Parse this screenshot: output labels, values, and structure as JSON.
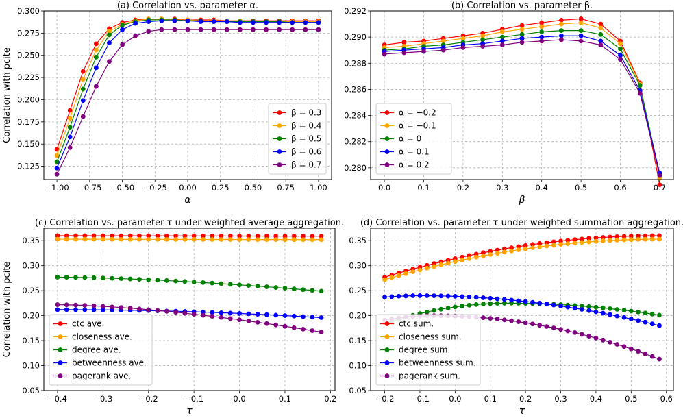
{
  "chart_data": [
    {
      "type": "line",
      "title": "(a) Correlation vs. parameter α.",
      "xlabel": "α",
      "ylabel": "Correlation with pcite",
      "xlim": [
        -1.1,
        1.1
      ],
      "ylim": [
        0.11,
        0.3
      ],
      "xticks": [
        -1.0,
        -0.75,
        -0.5,
        -0.25,
        0.0,
        0.25,
        0.5,
        0.75,
        1.0
      ],
      "xtick_labels": [
        "−1.00",
        "−0.75",
        "−0.50",
        "−0.25",
        "0.00",
        "0.25",
        "0.50",
        "0.75",
        "1.00"
      ],
      "yticks": [
        0.125,
        0.15,
        0.175,
        0.2,
        0.225,
        0.25,
        0.275,
        0.3
      ],
      "ytick_labels": [
        "0.125",
        "0.150",
        "0.175",
        "0.200",
        "0.225",
        "0.250",
        "0.275",
        "0.300"
      ],
      "legend_loc": "lower-right",
      "grid": true,
      "x": [
        -1.0,
        -0.9,
        -0.8,
        -0.7,
        -0.6,
        -0.5,
        -0.4,
        -0.3,
        -0.2,
        -0.1,
        0.0,
        0.1,
        0.2,
        0.3,
        0.4,
        0.5,
        0.6,
        0.7,
        0.8,
        0.9,
        1.0
      ],
      "series": [
        {
          "name": "β = 0.3",
          "color": "#ff0000",
          "values": [
            0.144,
            0.188,
            0.232,
            0.263,
            0.28,
            0.287,
            0.29,
            0.291,
            0.291,
            0.291,
            0.29,
            0.29,
            0.29,
            0.289,
            0.289,
            0.289,
            0.289,
            0.289,
            0.289,
            0.289,
            0.289
          ]
        },
        {
          "name": "β = 0.4",
          "color": "#ffa500",
          "values": [
            0.137,
            0.179,
            0.223,
            0.256,
            0.277,
            0.285,
            0.289,
            0.291,
            0.291,
            0.29,
            0.29,
            0.289,
            0.289,
            0.289,
            0.289,
            0.288,
            0.288,
            0.288,
            0.288,
            0.288,
            0.288
          ]
        },
        {
          "name": "β = 0.5",
          "color": "#008000",
          "values": [
            0.13,
            0.169,
            0.212,
            0.248,
            0.273,
            0.284,
            0.288,
            0.29,
            0.29,
            0.29,
            0.289,
            0.289,
            0.288,
            0.288,
            0.288,
            0.288,
            0.288,
            0.288,
            0.287,
            0.287,
            0.287
          ]
        },
        {
          "name": "β = 0.6",
          "color": "#0000ff",
          "values": [
            0.123,
            0.158,
            0.199,
            0.236,
            0.264,
            0.279,
            0.286,
            0.288,
            0.289,
            0.289,
            0.289,
            0.288,
            0.288,
            0.288,
            0.287,
            0.287,
            0.287,
            0.287,
            0.287,
            0.287,
            0.287
          ]
        },
        {
          "name": "β = 0.7",
          "color": "#800080",
          "values": [
            0.116,
            0.146,
            0.181,
            0.215,
            0.243,
            0.262,
            0.272,
            0.277,
            0.279,
            0.279,
            0.279,
            0.279,
            0.279,
            0.279,
            0.279,
            0.279,
            0.279,
            0.279,
            0.279,
            0.279,
            0.279
          ]
        }
      ]
    },
    {
      "type": "line",
      "title": "(b) Correlation vs. parameter β.",
      "xlabel": "β",
      "ylabel": "",
      "xlim": [
        -0.035,
        0.735
      ],
      "ylim": [
        0.2791,
        0.292
      ],
      "xticks": [
        0.0,
        0.1,
        0.2,
        0.3,
        0.4,
        0.5,
        0.6,
        0.7
      ],
      "xtick_labels": [
        "0.0",
        "0.1",
        "0.2",
        "0.3",
        "0.4",
        "0.5",
        "0.6",
        "0.7"
      ],
      "yticks": [
        0.28,
        0.282,
        0.284,
        0.286,
        0.288,
        0.29,
        0.292
      ],
      "ytick_labels": [
        "0.280",
        "0.282",
        "0.284",
        "0.286",
        "0.288",
        "0.290",
        "0.292"
      ],
      "legend_loc": "lower-left",
      "grid": true,
      "x": [
        0.0,
        0.05,
        0.1,
        0.15,
        0.2,
        0.25,
        0.3,
        0.35,
        0.4,
        0.45,
        0.5,
        0.55,
        0.6,
        0.65,
        0.7
      ],
      "series": [
        {
          "name": "α = −0.2",
          "color": "#ff0000",
          "values": [
            0.2894,
            0.2896,
            0.2897,
            0.2899,
            0.2901,
            0.2903,
            0.2906,
            0.2909,
            0.2911,
            0.2913,
            0.2914,
            0.291,
            0.2897,
            0.2865,
            0.2787
          ]
        },
        {
          "name": "α = −0.1",
          "color": "#ffa500",
          "values": [
            0.2892,
            0.2893,
            0.2895,
            0.2897,
            0.2899,
            0.2901,
            0.2904,
            0.2906,
            0.2908,
            0.291,
            0.2911,
            0.2907,
            0.2895,
            0.2864,
            0.2792
          ]
        },
        {
          "name": "α = 0",
          "color": "#008000",
          "values": [
            0.289,
            0.2891,
            0.2893,
            0.2894,
            0.2896,
            0.2898,
            0.29,
            0.2902,
            0.2904,
            0.2905,
            0.2905,
            0.2902,
            0.2891,
            0.2863,
            0.2795
          ]
        },
        {
          "name": "α = 0.1",
          "color": "#0000ff",
          "values": [
            0.2889,
            0.289,
            0.2891,
            0.2892,
            0.2894,
            0.2895,
            0.2897,
            0.2899,
            0.29,
            0.2901,
            0.2901,
            0.2897,
            0.2886,
            0.2859,
            0.2796
          ]
        },
        {
          "name": "α = 0.2",
          "color": "#800080",
          "values": [
            0.2887,
            0.2888,
            0.2889,
            0.289,
            0.2892,
            0.2893,
            0.2894,
            0.2896,
            0.2897,
            0.2898,
            0.2897,
            0.2894,
            0.2883,
            0.2857,
            0.2794
          ]
        }
      ]
    },
    {
      "type": "line",
      "title": "(c) Correlation vs. parameter τ under weighted average aggregation.",
      "xlabel": "τ",
      "ylabel": "Correlation with pcite",
      "xlim": [
        -0.43,
        0.21
      ],
      "ylim": [
        0.05,
        0.375
      ],
      "xticks": [
        -0.4,
        -0.3,
        -0.2,
        -0.1,
        0.0,
        0.1,
        0.2
      ],
      "xtick_labels": [
        "−0.4",
        "−0.3",
        "−0.2",
        "−0.1",
        "0.0",
        "0.1",
        "0.2"
      ],
      "yticks": [
        0.05,
        0.1,
        0.15,
        0.2,
        0.25,
        0.3,
        0.35
      ],
      "ytick_labels": [
        "0.05",
        "0.10",
        "0.15",
        "0.20",
        "0.25",
        "0.30",
        "0.35"
      ],
      "legend_loc": "lower-left",
      "grid": true,
      "x_range": {
        "start": -0.4,
        "end": 0.18,
        "step": 0.02
      },
      "series": [
        {
          "name": "ctc ave.",
          "color": "#ff0000",
          "start": 0.36,
          "end": 0.359,
          "curve": 1.0
        },
        {
          "name": "closeness ave.",
          "color": "#ffa500",
          "start": 0.353,
          "end": 0.352,
          "curve": 1.0
        },
        {
          "name": "degree ave.",
          "color": "#008000",
          "start": 0.277,
          "end": 0.249,
          "curve": 1.6
        },
        {
          "name": "betweenness ave.",
          "color": "#0000ff",
          "start": 0.212,
          "end": 0.196,
          "curve": 2.0
        },
        {
          "name": "pagerank ave.",
          "color": "#800080",
          "start": 0.222,
          "end": 0.167,
          "curve": 1.6
        }
      ]
    },
    {
      "type": "line",
      "title": "(d) Correlation vs. parameter τ under weighted summation aggregation.",
      "xlabel": "τ",
      "ylabel": "",
      "xlim": [
        -0.24,
        0.62
      ],
      "ylim": [
        0.05,
        0.375
      ],
      "xticks": [
        -0.2,
        -0.1,
        0.0,
        0.1,
        0.2,
        0.3,
        0.4,
        0.5,
        0.6
      ],
      "xtick_labels": [
        "−0.2",
        "−0.1",
        "0.0",
        "0.1",
        "0.2",
        "0.3",
        "0.4",
        "0.5",
        "0.6"
      ],
      "yticks": [
        0.05,
        0.1,
        0.15,
        0.2,
        0.25,
        0.3,
        0.35
      ],
      "ytick_labels": [
        "0.05",
        "0.10",
        "0.15",
        "0.20",
        "0.25",
        "0.30",
        "0.35"
      ],
      "legend_loc": "lower-left",
      "grid": true,
      "x_range": {
        "start": -0.2,
        "end": 0.58,
        "step": 0.02
      },
      "series": [
        {
          "name": "ctc sum.",
          "color": "#ff0000",
          "peak_x": 0.58,
          "peak_y": 0.36,
          "start_y": 0.277,
          "end_y": 0.36
        },
        {
          "name": "closeness sum.",
          "color": "#ffa500",
          "peak_x": 0.58,
          "peak_y": 0.353,
          "start_y": 0.272,
          "end_y": 0.353
        },
        {
          "name": "degree sum.",
          "color": "#008000",
          "peak_x": 0.15,
          "peak_y": 0.225,
          "start_y": 0.184,
          "end_y": 0.201
        },
        {
          "name": "betweenness sum.",
          "color": "#0000ff",
          "peak_x": -0.1,
          "peak_y": 0.24,
          "start_y": 0.237,
          "end_y": 0.18
        },
        {
          "name": "pagerank sum.",
          "color": "#800080",
          "peak_x": -0.06,
          "peak_y": 0.2,
          "start_y": 0.191,
          "end_y": 0.113
        }
      ]
    }
  ]
}
